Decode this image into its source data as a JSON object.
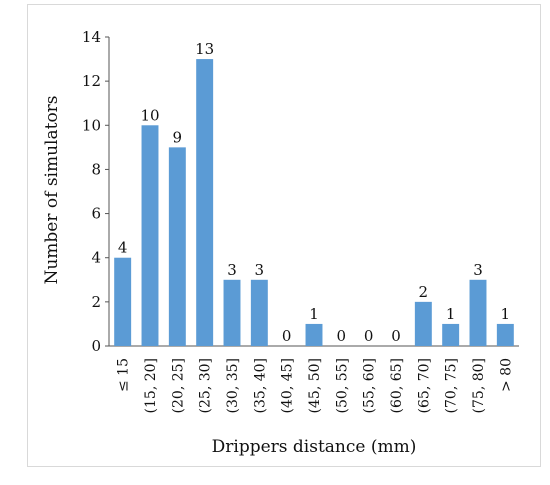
{
  "chart_data": {
    "type": "bar",
    "title": "",
    "xlabel": "Drippers distance (mm)",
    "ylabel": "Number of simulators",
    "ylim": [
      0,
      14
    ],
    "yticks": [
      0,
      2,
      4,
      6,
      8,
      10,
      12,
      14
    ],
    "grid": false,
    "legend": "none",
    "bar_color": "#5b9bd5",
    "categories": [
      "≤ 15",
      "(15, 20]",
      "(20, 25]",
      "(25, 30]",
      "(30, 35]",
      "(35, 40]",
      "(40, 45]",
      "(45, 50]",
      "(50, 55]",
      "(55, 60]",
      "(60, 65]",
      "(65, 70]",
      "(70, 75]",
      "(75, 80]",
      "> 80"
    ],
    "values": [
      4,
      10,
      9,
      13,
      3,
      3,
      0,
      1,
      0,
      0,
      0,
      2,
      1,
      3,
      1
    ]
  }
}
